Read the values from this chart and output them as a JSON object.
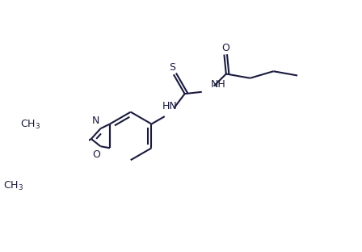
{
  "bg_color": "#ffffff",
  "line_color": "#1a1a3e",
  "bond_width": 1.5,
  "font_size": 9,
  "figsize": [
    4.48,
    3.12
  ],
  "dpi": 100,
  "xlim": [
    -1.0,
    8.5
  ],
  "ylim": [
    -3.5,
    3.0
  ]
}
